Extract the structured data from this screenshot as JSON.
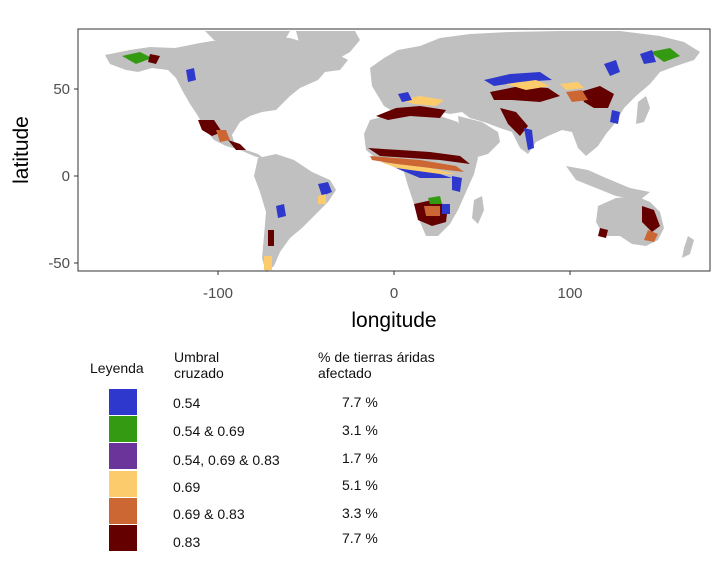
{
  "map": {
    "xlabel": "longitude",
    "ylabel": "latitude",
    "x_ticks": [
      -100,
      0,
      100
    ],
    "y_ticks": [
      50,
      0,
      -50
    ],
    "x_range": [
      -180,
      180
    ],
    "y_range": [
      -56,
      84
    ],
    "land_color": "#c0c0c0",
    "background": "#ffffff"
  },
  "legend": {
    "title": "Leyenda",
    "col_threshold_header": "Umbral\ncruzado",
    "col_percent_header": "% de tierras áridas\nafectado",
    "items": [
      {
        "label": "0.54",
        "percent": "7.7 %",
        "color": "#2f38cc"
      },
      {
        "label": "0.54 & 0.69",
        "percent": "3.1 %",
        "color": "#349a12"
      },
      {
        "label": "0.54, 0.69 & 0.83",
        "percent": "1.7 %",
        "color": "#6b349a"
      },
      {
        "label": "0.69",
        "percent": "5.1 %",
        "color": "#fccc6c"
      },
      {
        "label": "0.69 & 0.83",
        "percent": "3.3 %",
        "color": "#cc6633"
      },
      {
        "label": "0.83",
        "percent": "7.7 %",
        "color": "#640000"
      }
    ]
  }
}
